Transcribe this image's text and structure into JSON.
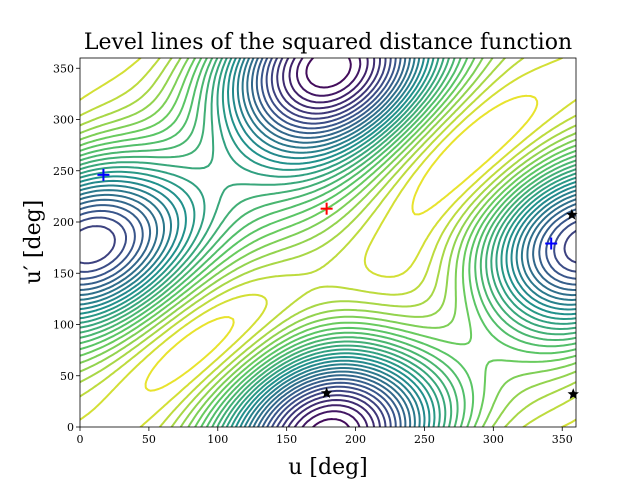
{
  "chart_data": {
    "type": "contour",
    "title": "Level lines of the squared distance function",
    "xlabel": "u [deg]",
    "ylabel": "u′ [deg]",
    "xlim": [
      0,
      360
    ],
    "ylim": [
      0,
      360
    ],
    "xticks": [
      0,
      50,
      100,
      150,
      200,
      250,
      300,
      350
    ],
    "yticks": [
      0,
      50,
      100,
      150,
      200,
      250,
      300,
      350
    ],
    "grid": false,
    "colormap": "viridis",
    "markers": [
      {
        "symbol": "+",
        "color": "#ff0000",
        "x": 179,
        "y": 213
      },
      {
        "symbol": "+",
        "color": "#0000ff",
        "x": 17,
        "y": 246
      },
      {
        "symbol": "+",
        "color": "#0000ff",
        "x": 342,
        "y": 179
      },
      {
        "symbol": "star",
        "color": "#000000",
        "x": 179,
        "y": 33
      },
      {
        "symbol": "star",
        "color": "#000000",
        "x": 357,
        "y": 207
      },
      {
        "symbol": "star",
        "color": "#000000",
        "x": 358,
        "y": 32
      }
    ]
  }
}
